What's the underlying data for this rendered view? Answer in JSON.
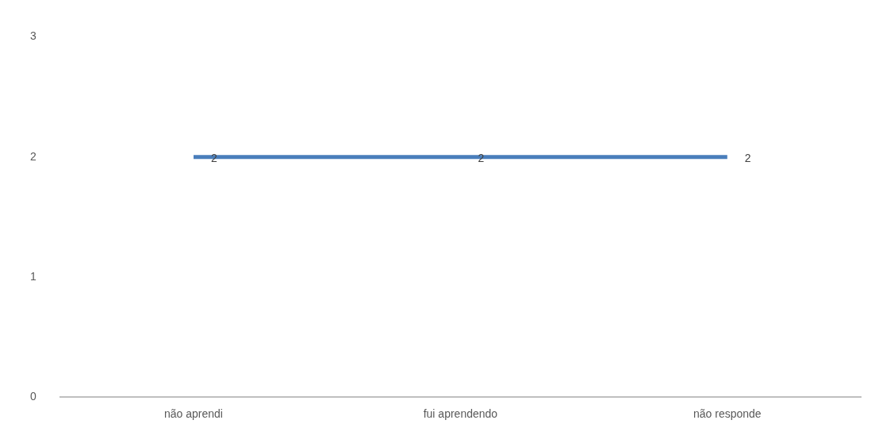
{
  "chart_data": {
    "type": "line",
    "categories": [
      "não aprendi",
      "fui aprendendo",
      "não responde"
    ],
    "series": [
      {
        "color": "#4a7ebb",
        "values": [
          2,
          2,
          2
        ]
      }
    ],
    "ylim": [
      0,
      3
    ],
    "yticks": [
      0,
      1,
      2,
      3
    ],
    "grid": false,
    "legend": false,
    "data_labels": true,
    "marker": "none"
  }
}
